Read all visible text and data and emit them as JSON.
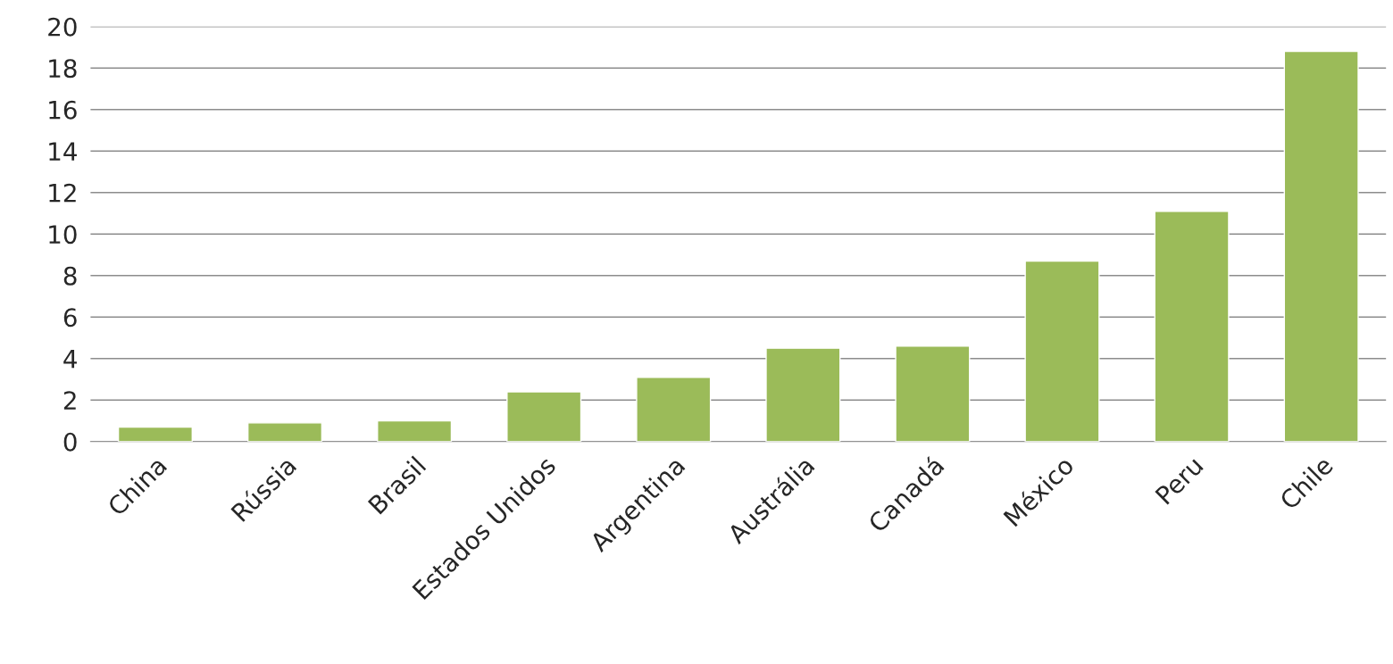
{
  "chart_data": {
    "type": "bar",
    "categories": [
      "China",
      "Rússia",
      "Brasil",
      "Estados Unidos",
      "Argentina",
      "Austrália",
      "Canadá",
      "México",
      "Peru",
      "Chile"
    ],
    "values": [
      0.7,
      0.9,
      1.0,
      2.4,
      3.1,
      4.5,
      4.6,
      8.7,
      11.1,
      18.8
    ],
    "color": "#9bbb59",
    "ylim": [
      0,
      20
    ],
    "yticks": [
      0,
      2,
      4,
      6,
      8,
      10,
      12,
      14,
      16,
      18,
      20
    ],
    "grid": "y"
  }
}
